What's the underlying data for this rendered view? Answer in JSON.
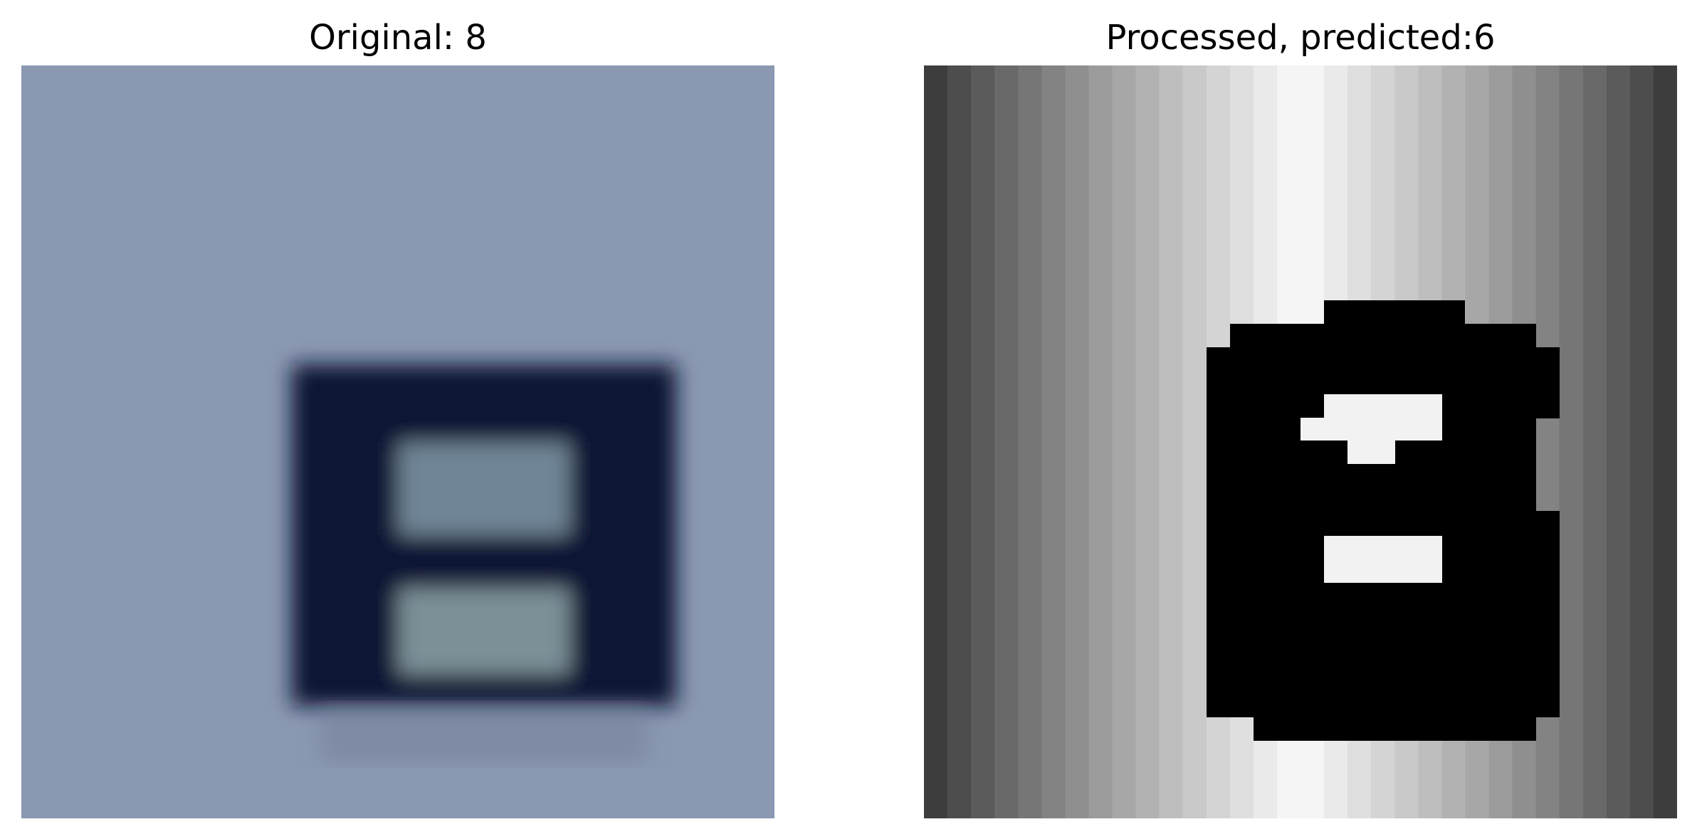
{
  "panels": [
    {
      "title": "Original: 8"
    },
    {
      "title": "Processed, predicted:6"
    }
  ]
}
